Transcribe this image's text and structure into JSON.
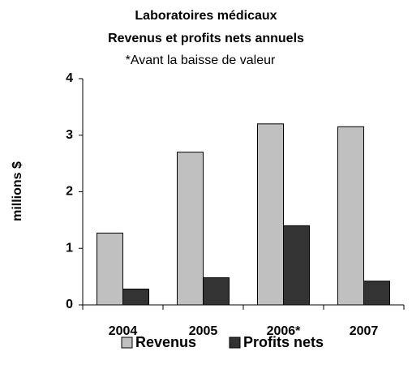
{
  "chart_data": {
    "type": "bar",
    "title": "Laboratoires médicaux",
    "subtitle": "Revenus et profits nets annuels",
    "annotation": "*Avant la baisse de valeur",
    "y_label": "millions $",
    "categories": [
      "2004",
      "2005",
      "2006*",
      "2007"
    ],
    "series": [
      {
        "name": "Revenus",
        "color": "#c0c0c0",
        "values": [
          1.27,
          2.7,
          3.2,
          3.15
        ]
      },
      {
        "name": "Profits nets",
        "color": "#333333",
        "values": [
          0.28,
          0.48,
          1.4,
          0.42
        ]
      }
    ],
    "ylim": [
      0,
      4
    ],
    "yticks": [
      0,
      1,
      2,
      3,
      4
    ],
    "grid": false
  }
}
